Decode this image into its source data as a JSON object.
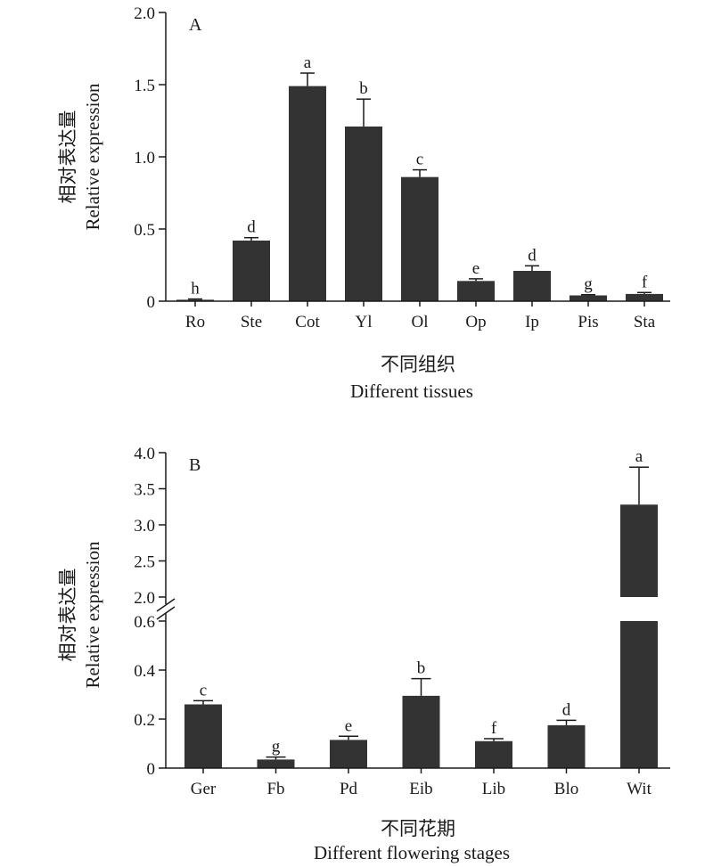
{
  "chart_data": [
    {
      "type": "bar",
      "panel_label": "A",
      "ylabel_cn": "相对表达量",
      "ylabel": "Relative expression",
      "xlabel_cn": "不同组织",
      "xlabel": "Different tissues",
      "categories": [
        "Ro",
        "Ste",
        "Cot",
        "Yl",
        "Ol",
        "Op",
        "Ip",
        "Pis",
        "Sta"
      ],
      "values": [
        0.01,
        0.42,
        1.49,
        1.21,
        0.86,
        0.14,
        0.21,
        0.04,
        0.05
      ],
      "errors": [
        0.005,
        0.02,
        0.09,
        0.19,
        0.05,
        0.015,
        0.035,
        0.005,
        0.01
      ],
      "significance": [
        "h",
        "d",
        "a",
        "b",
        "c",
        "e",
        "d",
        "g",
        "f"
      ],
      "ylim": [
        0,
        2.0
      ],
      "yticks": [
        "0",
        "0.5",
        "1.0",
        "1.5",
        "2.0"
      ],
      "bar_color": "#333333"
    },
    {
      "type": "bar",
      "panel_label": "B",
      "ylabel_cn": "相对表达量",
      "ylabel": "Relative expression",
      "xlabel_cn": "不同花期",
      "xlabel": "Different flowering stages",
      "categories": [
        "Ger",
        "Fb",
        "Pd",
        "Eib",
        "Lib",
        "Blo",
        "Wit"
      ],
      "values": [
        0.26,
        0.035,
        0.115,
        0.295,
        0.11,
        0.175,
        3.28
      ],
      "errors": [
        0.015,
        0.01,
        0.015,
        0.07,
        0.01,
        0.02,
        0.52
      ],
      "significance": [
        "c",
        "g",
        "e",
        "b",
        "f",
        "d",
        "a"
      ],
      "axis_break": {
        "lower_range": [
          0,
          0.6
        ],
        "upper_range": [
          2.0,
          4.0
        ]
      },
      "yticks_lower": [
        "0",
        "0.2",
        "0.4",
        "0.6"
      ],
      "yticks_upper": [
        "2.0",
        "2.5",
        "3.0",
        "3.5",
        "4.0"
      ],
      "bar_color": "#333333"
    }
  ]
}
